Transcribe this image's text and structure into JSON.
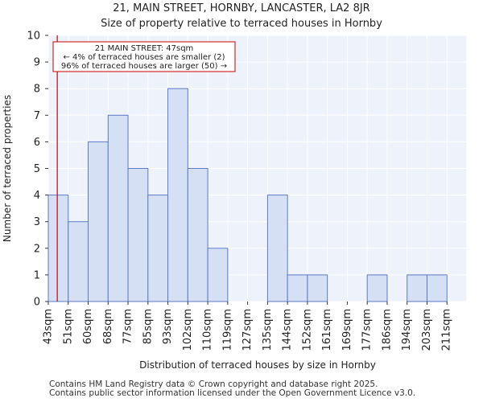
{
  "title": {
    "line1": "21, MAIN STREET, HORNBY, LANCASTER, LA2 8JR",
    "line2": "Size of property relative to terraced houses in Hornby"
  },
  "footer": {
    "line1": "Contains HM Land Registry data © Crown copyright and database right 2025.",
    "line2": "Contains public sector information licensed under the Open Government Licence v3.0."
  },
  "colors": {
    "bar_fill": "#d6e0f5",
    "bar_stroke": "#5b7ac7",
    "plot_bg": "#eef2fb",
    "grid": "#ffffff",
    "marker": "#cc0000"
  },
  "chart_data": {
    "type": "bar",
    "title": "Size of property relative to terraced houses in Hornby",
    "xlabel": "Distribution of terraced houses by size in Hornby",
    "ylabel": "Number of terraced properties",
    "categories": [
      "43sqm",
      "51sqm",
      "60sqm",
      "68sqm",
      "77sqm",
      "85sqm",
      "93sqm",
      "102sqm",
      "110sqm",
      "119sqm",
      "127sqm",
      "135sqm",
      "144sqm",
      "152sqm",
      "161sqm",
      "169sqm",
      "177sqm",
      "186sqm",
      "194sqm",
      "203sqm",
      "211sqm"
    ],
    "values": [
      4,
      3,
      6,
      7,
      5,
      4,
      8,
      5,
      2,
      0,
      0,
      4,
      1,
      1,
      0,
      0,
      1,
      0,
      1,
      1,
      0
    ],
    "ylim": [
      0,
      10
    ],
    "yticks": [
      0,
      1,
      2,
      3,
      4,
      5,
      6,
      7,
      8,
      9,
      10
    ],
    "grid": true,
    "marker": {
      "value_sqm": 47,
      "position_bins": 0.45,
      "label": "21 MAIN STREET: 47sqm",
      "line2": "← 4% of terraced houses are smaller (2)",
      "line3": "96% of terraced houses are larger (50) →"
    }
  }
}
